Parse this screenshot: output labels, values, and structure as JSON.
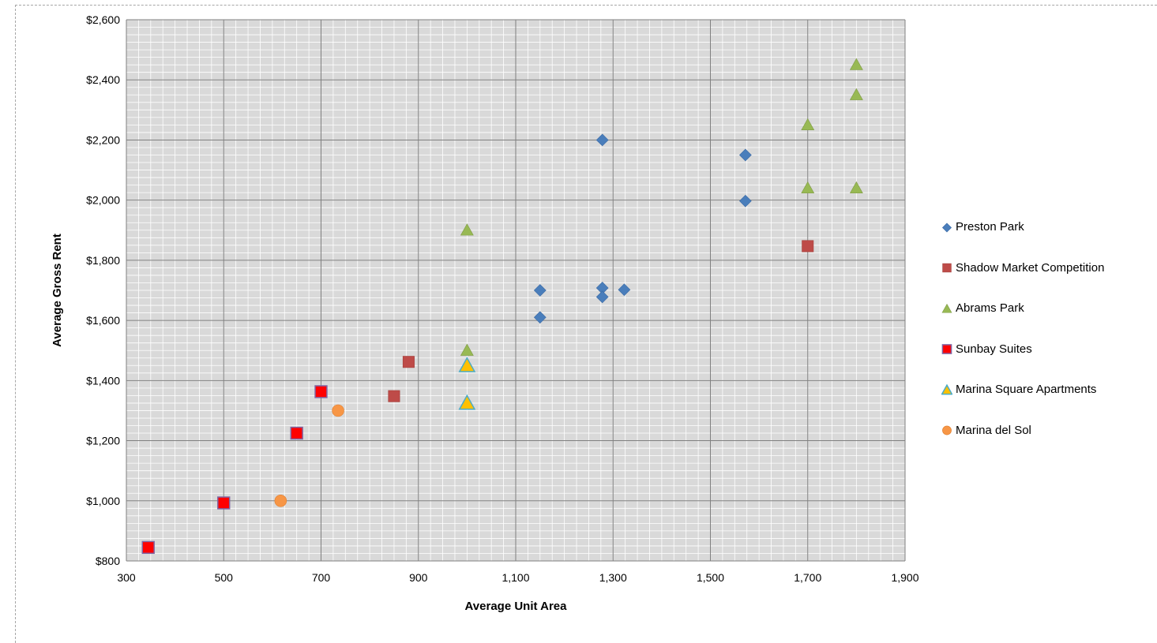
{
  "chart_data": {
    "type": "scatter",
    "xlabel": "Average Unit Area",
    "ylabel": "Average Gross Rent",
    "xlim": [
      300,
      1900
    ],
    "ylim": [
      800,
      2600
    ],
    "x_ticks": [
      "300",
      "500",
      "700",
      "900",
      "1,100",
      "1,300",
      "1,500",
      "1,700",
      "1,900"
    ],
    "y_ticks": [
      "$800",
      "$1,000",
      "$1,200",
      "$1,400",
      "$1,600",
      "$1,800",
      "$2,000",
      "$2,200",
      "$2,400",
      "$2,600"
    ],
    "grid": true,
    "legend_position": "right",
    "series": [
      {
        "name": "Preston Park",
        "marker": "diamond",
        "color": "#4a7ebb",
        "points": [
          [
            1150,
            1700
          ],
          [
            1150,
            1610
          ],
          [
            1278,
            1708
          ],
          [
            1278,
            1678
          ],
          [
            1323,
            1702
          ],
          [
            1278,
            2200
          ],
          [
            1572,
            2150
          ],
          [
            1572,
            1997
          ]
        ]
      },
      {
        "name": "Shadow Market Competition",
        "marker": "square",
        "color": "#be4b48",
        "points": [
          [
            850,
            1348
          ],
          [
            880,
            1462
          ],
          [
            1700,
            1847
          ]
        ]
      },
      {
        "name": "Abrams Park",
        "marker": "triangle",
        "color": "#98b954",
        "points": [
          [
            1000,
            1900
          ],
          [
            1000,
            1500
          ],
          [
            1700,
            2250
          ],
          [
            1700,
            2040
          ],
          [
            1800,
            2450
          ],
          [
            1800,
            2350
          ],
          [
            1800,
            2040
          ]
        ]
      },
      {
        "name": "Sunbay Suites",
        "marker": "square-outlined",
        "color": "#ff0000",
        "stroke": "#8064a2",
        "points": [
          [
            345,
            845
          ],
          [
            500,
            993
          ],
          [
            650,
            1225
          ],
          [
            700,
            1363
          ]
        ]
      },
      {
        "name": "Marina Square Apartments",
        "marker": "triangle-outlined",
        "color": "#ffc000",
        "stroke": "#4bacc6",
        "points": [
          [
            1000,
            1450
          ],
          [
            1000,
            1325
          ]
        ]
      },
      {
        "name": "Marina del Sol",
        "marker": "circle",
        "color": "#f79646",
        "points": [
          [
            617,
            1000
          ],
          [
            735,
            1300
          ]
        ]
      }
    ]
  },
  "colors": {
    "plot_background": "#d9d9d9",
    "major_grid": "#808080",
    "minor_grid": "#ffffff"
  }
}
